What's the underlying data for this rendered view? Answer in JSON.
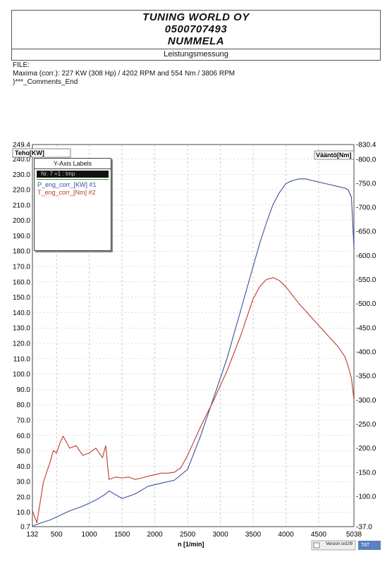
{
  "header": {
    "company": "TUNING WORLD OY",
    "phone": "0500707493",
    "city": "NUMMELA",
    "subtitle": "Leistungsmessung"
  },
  "info": {
    "file_label": "FILE:",
    "maxima": "Maxima (corr.):  227 KW (308 Hp) /  4202 RPM  and   554 Nm /  3806 RPM",
    "comments": ")***_Comments_End"
  },
  "legend": {
    "title": "Y-Axis Labels",
    "selected": "Nr. 7 =1          :  tmp",
    "items": [
      {
        "label": "P_eng_corr_[KW] #1",
        "color": "#3a4fa0"
      },
      {
        "label": "T_eng_corr_[Nm] #2",
        "color": "#c0392b"
      }
    ]
  },
  "footer": {
    "version": "Version sn109",
    "brand": "TAT"
  },
  "chart_data": {
    "type": "line",
    "xlabel": "n  [1/min]",
    "ylabel_left": "Teho[KW]",
    "ylabel_right": "Vääntö[Nm]",
    "xlim": [
      132,
      5038
    ],
    "ylim_left": [
      0.7,
      249.4
    ],
    "ylim_right": [
      37.0,
      830.4
    ],
    "x_ticks": [
      "132",
      "500",
      "1000",
      "1500",
      "2000",
      "2500",
      "3000",
      "3500",
      "4000",
      "4500",
      "5038"
    ],
    "y_left_ticks": [
      "0.7",
      "10.0",
      "20.0",
      "30.0",
      "40.0",
      "50.0",
      "60.0",
      "70.0",
      "80.0",
      "90.0",
      "100.0",
      "110.0",
      "120.0",
      "130.0",
      "140.0",
      "150.0",
      "160.0",
      "170.0",
      "180.0",
      "190.0",
      "200.0",
      "210.0",
      "220.0",
      "230.0",
      "240.0",
      "249.4"
    ],
    "y_right_ticks": [
      "-37.0",
      "-100.0",
      "-150.0",
      "-200.0",
      "-250.0",
      "-300.0",
      "-350.0",
      "-400.0",
      "-450.0",
      "-500.0",
      "-550.0",
      "-600.0",
      "-650.0",
      "-700.0",
      "-750.0",
      "-800.0",
      "-830.4"
    ],
    "grid": true,
    "legend_position": "top-left",
    "series": [
      {
        "name": "P_eng_corr_[KW] #1",
        "axis": "left",
        "color": "#3a4fa0",
        "x": [
          132,
          250,
          400,
          550,
          700,
          900,
          1100,
          1250,
          1300,
          1500,
          1700,
          1900,
          2100,
          2300,
          2500,
          2700,
          2900,
          3100,
          3300,
          3500,
          3600,
          3700,
          3800,
          3900,
          4000,
          4100,
          4200,
          4300,
          4400,
          4500,
          4600,
          4700,
          4800,
          4900,
          4950,
          5000,
          5038
        ],
        "y": [
          1,
          3,
          5,
          8,
          11,
          14,
          18,
          22,
          24,
          19,
          22,
          27,
          29,
          31,
          38,
          60,
          85,
          110,
          140,
          170,
          185,
          198,
          210,
          218,
          224,
          226,
          227,
          227,
          226,
          225,
          224,
          223,
          222,
          221,
          220,
          215,
          182
        ]
      },
      {
        "name": "T_eng_corr_[Nm] #2",
        "axis": "right",
        "color": "#c0392b",
        "x": [
          132,
          200,
          300,
          400,
          450,
          500,
          550,
          600,
          700,
          800,
          900,
          1000,
          1100,
          1200,
          1250,
          1300,
          1400,
          1500,
          1600,
          1700,
          1800,
          1900,
          2000,
          2100,
          2200,
          2300,
          2400,
          2500,
          2700,
          2900,
          3100,
          3300,
          3500,
          3600,
          3700,
          3806,
          3900,
          4000,
          4200,
          4400,
          4600,
          4800,
          4900,
          4950,
          5000,
          5038
        ],
        "y": [
          70,
          45,
          130,
          170,
          195,
          190,
          210,
          225,
          200,
          205,
          185,
          190,
          200,
          180,
          205,
          135,
          140,
          138,
          140,
          135,
          138,
          142,
          145,
          148,
          148,
          150,
          160,
          185,
          245,
          300,
          360,
          430,
          510,
          535,
          550,
          554,
          548,
          535,
          500,
          470,
          440,
          410,
          390,
          370,
          345,
          300
        ]
      }
    ]
  }
}
